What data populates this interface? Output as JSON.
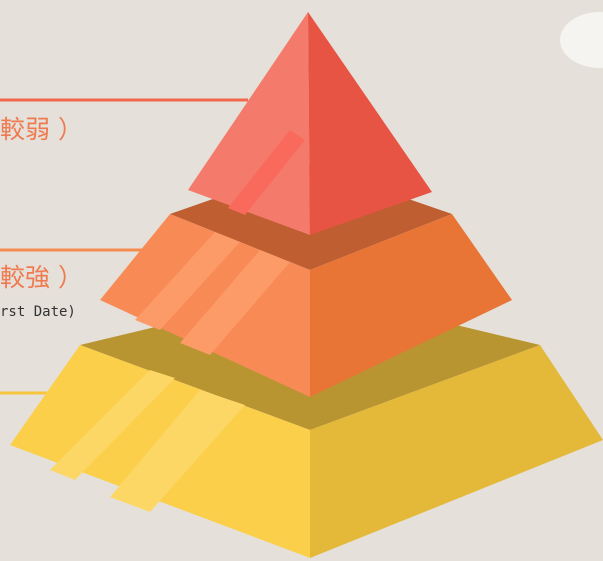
{
  "labels": [
    {
      "text": "較弱 ）"
    },
    {
      "text": "較強 ）",
      "subtext": "rst Date)"
    }
  ]
}
